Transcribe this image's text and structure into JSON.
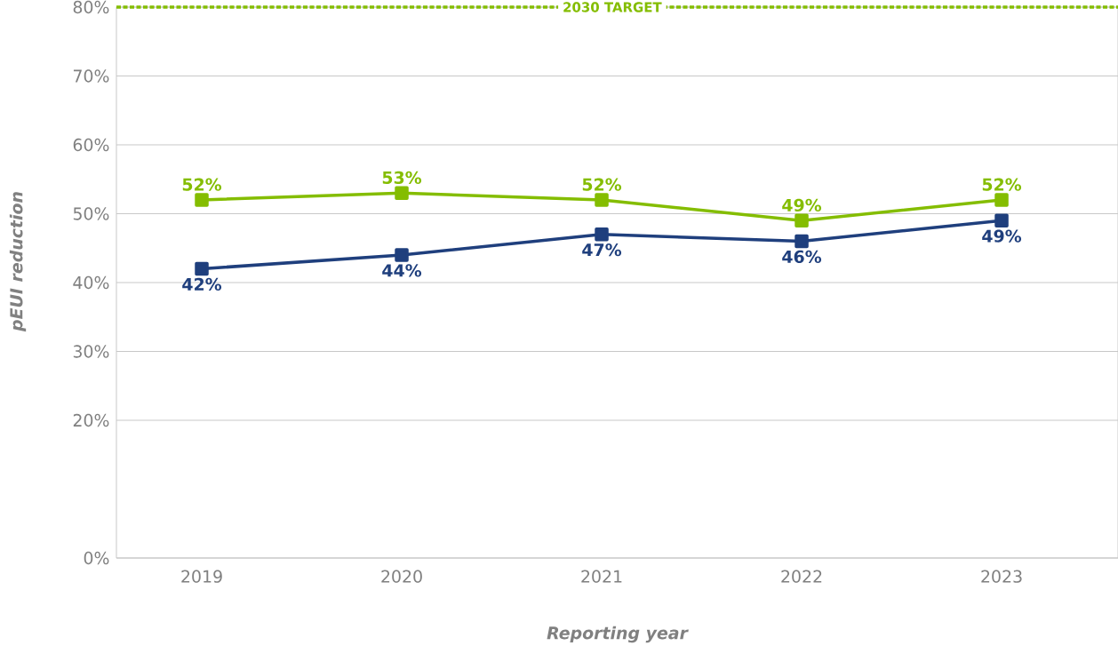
{
  "chart_data": {
    "type": "line",
    "xlabel": "Reporting year",
    "ylabel": "pEUI reduction",
    "categories": [
      "2019",
      "2020",
      "2021",
      "2022",
      "2023"
    ],
    "series": [
      {
        "color": "#84bd00",
        "values": [
          52,
          53,
          52,
          49,
          52
        ],
        "value_labels": [
          "52%",
          "53%",
          "52%",
          "49%",
          "52%"
        ]
      },
      {
        "color": "#1f3f7d",
        "values": [
          42,
          44,
          47,
          46,
          49
        ],
        "value_labels": [
          "42%",
          "44%",
          "47%",
          "46%",
          "49%"
        ]
      }
    ],
    "ylim": [
      0,
      80
    ],
    "yticks": [
      {
        "value": 0,
        "label": "0%"
      },
      {
        "value": 20,
        "label": "20%"
      },
      {
        "value": 30,
        "label": "30%"
      },
      {
        "value": 40,
        "label": "40%"
      },
      {
        "value": 50,
        "label": "50%"
      },
      {
        "value": 60,
        "label": "60%"
      },
      {
        "value": 70,
        "label": "70%"
      },
      {
        "value": 80,
        "label": "80%"
      }
    ],
    "ref_lines": [
      {
        "axis": "y",
        "value": 80,
        "label": "2030 TARGET",
        "color": "#84bd00",
        "line_style": "dotted"
      }
    ],
    "grid": "y",
    "marker": "square",
    "line_style": "solid"
  }
}
